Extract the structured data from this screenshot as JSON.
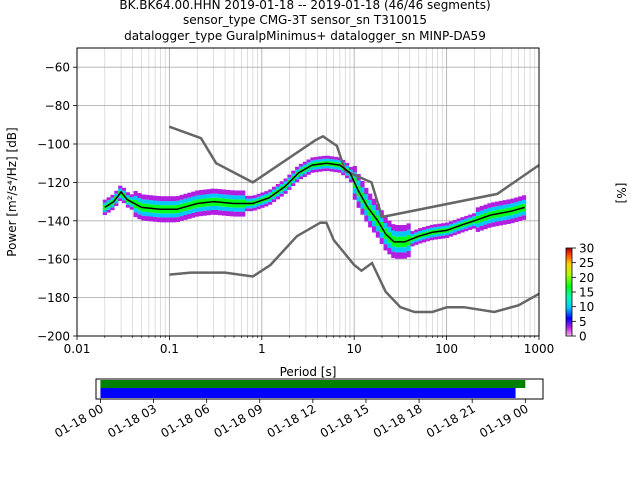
{
  "header": {
    "line1": "BK.BK64.00.HHN   2019-01-18 -- 2019-01-18  (46/46 segments)",
    "line2": "sensor_type CMG-3T sensor_sn T310015",
    "line3": "datalogger_type GuralpMinimus+ datalogger_sn MINP-DA59"
  },
  "colorbar": {
    "label": "[%]",
    "ticks": [
      0,
      5,
      10,
      15,
      20,
      25,
      30
    ],
    "range": [
      0,
      30
    ]
  },
  "timeline": {
    "tick_labels": [
      "01-18 00",
      "01-18 03",
      "01-18 06",
      "01-18 09",
      "01-18 12",
      "01-18 15",
      "01-18 18",
      "01-18 21",
      "01-19 00"
    ],
    "range_hours": [
      -0.25,
      25.0
    ],
    "coverage_green": [
      0.0,
      24.0
    ],
    "coverage_blue": [
      0.0,
      23.45
    ]
  },
  "chart_data": {
    "type": "heatmap",
    "title": "BK.BK64.00.HHN   2019-01-18 -- 2019-01-18  (46/46 segments)",
    "xlabel": "Period [s]",
    "ylabel": "Power [m²/s⁴/Hz] [dB]",
    "xscale": "log",
    "xlim": [
      0.01,
      1000
    ],
    "ylim": [
      -200,
      -50
    ],
    "x_tick_labels": [
      "0.01",
      "0.1",
      "1",
      "10",
      "100",
      "1000"
    ],
    "x_ticks": [
      0.01,
      0.1,
      1,
      10,
      100,
      1000
    ],
    "y_ticks": [
      -200,
      -180,
      -160,
      -140,
      -120,
      -100,
      -80,
      -60
    ],
    "grid": true,
    "legend": "none",
    "mean_curve": [
      [
        0.02,
        -133
      ],
      [
        0.025,
        -130
      ],
      [
        0.03,
        -125
      ],
      [
        0.035,
        -129
      ],
      [
        0.05,
        -133
      ],
      [
        0.08,
        -134
      ],
      [
        0.12,
        -134
      ],
      [
        0.2,
        -131
      ],
      [
        0.3,
        -130
      ],
      [
        0.5,
        -131
      ],
      [
        0.8,
        -131
      ],
      [
        1.2,
        -128
      ],
      [
        1.8,
        -122
      ],
      [
        2.5,
        -115
      ],
      [
        3.5,
        -111
      ],
      [
        5,
        -110
      ],
      [
        7,
        -111
      ],
      [
        9,
        -115
      ],
      [
        11,
        -124
      ],
      [
        14,
        -133
      ],
      [
        18,
        -140
      ],
      [
        22,
        -147
      ],
      [
        27,
        -151
      ],
      [
        35,
        -151
      ],
      [
        50,
        -148
      ],
      [
        70,
        -146
      ],
      [
        100,
        -145
      ],
      [
        150,
        -142
      ],
      [
        200,
        -140
      ],
      [
        300,
        -137
      ],
      [
        500,
        -135
      ],
      [
        700,
        -133
      ]
    ],
    "new_high_noise_model": [
      [
        0.1,
        -91
      ],
      [
        0.22,
        -97
      ],
      [
        0.32,
        -110
      ],
      [
        0.8,
        -120
      ],
      [
        3.8,
        -98
      ],
      [
        4.6,
        -96
      ],
      [
        6.5,
        -101
      ],
      [
        8,
        -114
      ],
      [
        15.4,
        -120
      ],
      [
        20,
        -138
      ],
      [
        354,
        -126
      ],
      [
        1000,
        -111
      ]
    ],
    "new_low_noise_model": [
      [
        0.1,
        -168
      ],
      [
        0.17,
        -167
      ],
      [
        0.4,
        -167
      ],
      [
        0.8,
        -169
      ],
      [
        1.24,
        -163
      ],
      [
        2.4,
        -148
      ],
      [
        4.3,
        -141
      ],
      [
        5,
        -141
      ],
      [
        6,
        -150
      ],
      [
        10,
        -163
      ],
      [
        12,
        -166
      ],
      [
        15.6,
        -162
      ],
      [
        21.9,
        -177
      ],
      [
        31.6,
        -185
      ],
      [
        45,
        -187.5
      ],
      [
        70,
        -187.5
      ],
      [
        101,
        -185
      ],
      [
        154,
        -185
      ],
      [
        328,
        -187.5
      ],
      [
        600,
        -184
      ],
      [
        1000,
        -178
      ]
    ],
    "spread_dB": 2.5
  }
}
